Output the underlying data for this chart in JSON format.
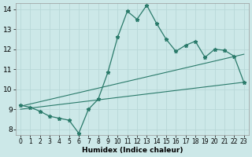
{
  "xlabel": "Humidex (Indice chaleur)",
  "ylabel": "",
  "xlim": [
    -0.5,
    23.5
  ],
  "ylim": [
    7.7,
    14.3
  ],
  "yticks": [
    8,
    9,
    10,
    11,
    12,
    13,
    14
  ],
  "xticks": [
    0,
    1,
    2,
    3,
    4,
    5,
    6,
    7,
    8,
    9,
    10,
    11,
    12,
    13,
    14,
    15,
    16,
    17,
    18,
    19,
    20,
    21,
    22,
    23
  ],
  "bg_color": "#cce8e8",
  "grid_color": "#b8d8d8",
  "line_color": "#2a7a6a",
  "curve1_x": [
    0,
    1,
    2,
    3,
    4,
    5,
    6,
    7,
    8,
    9,
    10,
    11,
    12,
    13,
    14,
    15,
    16,
    17,
    18,
    19,
    20,
    21,
    22,
    23
  ],
  "curve1_y": [
    9.2,
    9.1,
    8.9,
    8.65,
    8.55,
    8.45,
    7.8,
    9.0,
    9.5,
    10.85,
    12.6,
    13.9,
    13.5,
    14.2,
    13.3,
    12.5,
    11.9,
    12.2,
    12.4,
    11.6,
    12.0,
    11.95,
    11.65,
    10.35
  ],
  "line1_x": [
    0,
    23
  ],
  "line1_y": [
    9.15,
    11.75
  ],
  "line2_x": [
    0,
    23
  ],
  "line2_y": [
    9.0,
    10.35
  ],
  "xlabel_fontsize": 6.5,
  "ytick_fontsize": 6.5,
  "xtick_fontsize": 5.5
}
